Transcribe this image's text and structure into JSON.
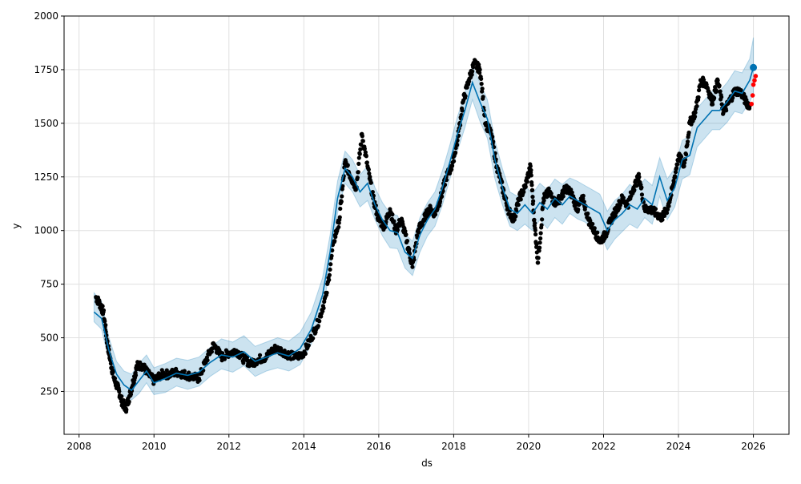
{
  "chart_data": {
    "type": "line",
    "title": "",
    "xlabel": "ds",
    "ylabel": "y",
    "xlim": [
      2007.6,
      2026.95
    ],
    "ylim": [
      50,
      2000
    ],
    "x_ticks": [
      2008,
      2010,
      2012,
      2014,
      2016,
      2018,
      2020,
      2022,
      2024,
      2026
    ],
    "x_tick_labels": [
      "2008",
      "2010",
      "2012",
      "2014",
      "2016",
      "2018",
      "2020",
      "2022",
      "2024",
      "2026"
    ],
    "y_ticks": [
      250,
      500,
      750,
      1000,
      1250,
      1500,
      1750,
      2000
    ],
    "y_tick_labels": [
      "250",
      "500",
      "750",
      "1000",
      "1250",
      "1500",
      "1750",
      "2000"
    ],
    "grid": true,
    "colors": {
      "observed": "#000000",
      "forecast": "#0072B2",
      "uncertainty": "#0072B2",
      "recent": "#ff0000"
    },
    "series": [
      {
        "role": "forecast",
        "x": [
          2008.4,
          2008.6,
          2008.8,
          2009.0,
          2009.2,
          2009.4,
          2009.6,
          2009.8,
          2010.0,
          2010.3,
          2010.6,
          2010.9,
          2011.2,
          2011.5,
          2011.8,
          2012.1,
          2012.4,
          2012.7,
          2013.0,
          2013.3,
          2013.6,
          2013.9,
          2014.2,
          2014.5,
          2014.7,
          2014.9,
          2015.1,
          2015.3,
          2015.5,
          2015.7,
          2015.9,
          2016.1,
          2016.3,
          2016.5,
          2016.7,
          2016.9,
          2017.1,
          2017.3,
          2017.5,
          2017.7,
          2017.9,
          2018.1,
          2018.3,
          2018.5,
          2018.7,
          2018.9,
          2019.1,
          2019.3,
          2019.5,
          2019.7,
          2019.9,
          2020.1,
          2020.3,
          2020.5,
          2020.7,
          2020.9,
          2021.1,
          2021.3,
          2021.5,
          2021.7,
          2021.9,
          2022.1,
          2022.3,
          2022.5,
          2022.7,
          2022.9,
          2023.1,
          2023.3,
          2023.5,
          2023.7,
          2023.9,
          2024.1,
          2024.3,
          2024.5,
          2024.7,
          2024.9,
          2025.1,
          2025.3,
          2025.5,
          2025.7,
          2025.9,
          2026.0
        ],
        "y": [
          620,
          590,
          440,
          330,
          280,
          255,
          300,
          345,
          290,
          310,
          335,
          325,
          340,
          385,
          420,
          410,
          435,
          390,
          410,
          430,
          415,
          450,
          540,
          700,
          900,
          1150,
          1290,
          1250,
          1180,
          1220,
          1120,
          1050,
          1000,
          990,
          900,
          870,
          980,
          1050,
          1100,
          1200,
          1320,
          1450,
          1560,
          1690,
          1600,
          1520,
          1330,
          1200,
          1100,
          1080,
          1120,
          1080,
          1130,
          1100,
          1150,
          1120,
          1160,
          1140,
          1120,
          1100,
          1080,
          1000,
          1050,
          1080,
          1120,
          1100,
          1150,
          1120,
          1250,
          1140,
          1200,
          1330,
          1350,
          1480,
          1520,
          1560,
          1560,
          1600,
          1650,
          1640,
          1700,
          1760
        ],
        "lower": [
          575,
          540,
          390,
          285,
          230,
          210,
          240,
          290,
          235,
          245,
          275,
          260,
          275,
          320,
          355,
          340,
          370,
          320,
          345,
          360,
          345,
          375,
          470,
          630,
          820,
          1080,
          1220,
          1180,
          1110,
          1140,
          1050,
          975,
          920,
          915,
          825,
          790,
          900,
          975,
          1020,
          1120,
          1240,
          1370,
          1480,
          1610,
          1510,
          1430,
          1240,
          1120,
          1020,
          1000,
          1030,
          1000,
          1050,
          1010,
          1060,
          1030,
          1080,
          1055,
          1040,
          1010,
          995,
          910,
          960,
          995,
          1030,
          1010,
          1060,
          1030,
          1160,
          1050,
          1110,
          1240,
          1260,
          1390,
          1430,
          1470,
          1470,
          1505,
          1555,
          1545,
          1600,
          1640
        ],
        "upper": [
          710,
          670,
          500,
          390,
          345,
          330,
          380,
          420,
          360,
          380,
          405,
          395,
          410,
          455,
          495,
          480,
          510,
          460,
          480,
          500,
          485,
          525,
          620,
          780,
          980,
          1230,
          1370,
          1330,
          1260,
          1300,
          1200,
          1130,
          1080,
          1070,
          985,
          950,
          1060,
          1130,
          1180,
          1280,
          1400,
          1530,
          1640,
          1770,
          1690,
          1610,
          1420,
          1290,
          1180,
          1160,
          1210,
          1170,
          1220,
          1190,
          1240,
          1215,
          1245,
          1230,
          1210,
          1190,
          1170,
          1090,
          1140,
          1170,
          1215,
          1190,
          1240,
          1210,
          1340,
          1240,
          1290,
          1420,
          1440,
          1570,
          1610,
          1650,
          1650,
          1690,
          1745,
          1735,
          1800,
          1900
        ]
      },
      {
        "role": "observed",
        "x": [
          2008.45,
          2008.55,
          2008.65,
          2008.75,
          2008.85,
          2008.95,
          2009.05,
          2009.15,
          2009.25,
          2009.35,
          2009.45,
          2009.55,
          2009.7,
          2009.85,
          2010.0,
          2010.2,
          2010.4,
          2010.6,
          2010.8,
          2011.0,
          2011.2,
          2011.4,
          2011.6,
          2011.8,
          2012.0,
          2012.2,
          2012.4,
          2012.6,
          2012.8,
          2013.0,
          2013.2,
          2013.4,
          2013.6,
          2013.8,
          2014.0,
          2014.2,
          2014.4,
          2014.6,
          2014.8,
          2014.95,
          2015.1,
          2015.25,
          2015.4,
          2015.55,
          2015.7,
          2015.85,
          2016.0,
          2016.15,
          2016.3,
          2016.45,
          2016.6,
          2016.75,
          2016.9,
          2017.05,
          2017.2,
          2017.35,
          2017.5,
          2017.65,
          2017.8,
          2017.95,
          2018.1,
          2018.25,
          2018.4,
          2018.55,
          2018.7,
          2018.85,
          2019.0,
          2019.15,
          2019.3,
          2019.45,
          2019.6,
          2019.75,
          2019.9,
          2020.05,
          2020.15,
          2020.25,
          2020.4,
          2020.55,
          2020.7,
          2020.85,
          2021.0,
          2021.15,
          2021.3,
          2021.45,
          2021.6,
          2021.75,
          2021.9,
          2022.05,
          2022.2,
          2022.35,
          2022.5,
          2022.65,
          2022.8,
          2022.95,
          2023.1,
          2023.25,
          2023.4,
          2023.55,
          2023.7,
          2023.85,
          2024.0,
          2024.15,
          2024.3,
          2024.45,
          2024.6,
          2024.75,
          2024.9,
          2025.05,
          2025.2,
          2025.35,
          2025.5,
          2025.65,
          2025.8,
          2025.9
        ],
        "y": [
          690,
          660,
          620,
          480,
          380,
          300,
          260,
          200,
          170,
          230,
          300,
          370,
          370,
          330,
          300,
          330,
          330,
          340,
          330,
          320,
          310,
          400,
          470,
          410,
          430,
          440,
          400,
          380,
          400,
          410,
          450,
          440,
          420,
          410,
          430,
          500,
          580,
          700,
          950,
          1050,
          1320,
          1250,
          1200,
          1450,
          1300,
          1150,
          1050,
          1020,
          1100,
          1000,
          1050,
          950,
          830,
          1000,
          1050,
          1100,
          1080,
          1150,
          1250,
          1300,
          1420,
          1600,
          1700,
          1780,
          1750,
          1500,
          1450,
          1300,
          1200,
          1100,
          1050,
          1150,
          1200,
          1300,
          1050,
          850,
          1150,
          1180,
          1130,
          1150,
          1200,
          1170,
          1100,
          1150,
          1050,
          1000,
          950,
          980,
          1050,
          1100,
          1150,
          1120,
          1200,
          1250,
          1100,
          1100,
          1080,
          1060,
          1100,
          1200,
          1350,
          1300,
          1500,
          1550,
          1700,
          1680,
          1600,
          1700,
          1550,
          1600,
          1650,
          1650,
          1600,
          1580
        ]
      },
      {
        "role": "recent",
        "x": [
          2025.95,
          2025.98,
          2026.0,
          2026.03,
          2026.06
        ],
        "y": [
          1590,
          1630,
          1680,
          1700,
          1720
        ]
      }
    ]
  }
}
